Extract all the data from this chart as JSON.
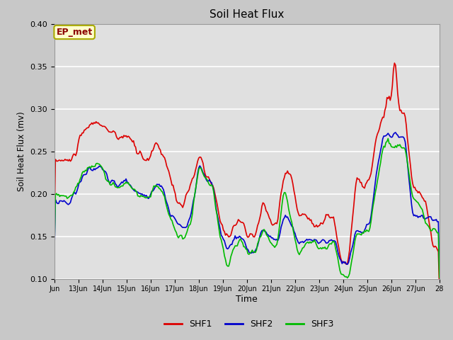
{
  "title": "Soil Heat Flux",
  "xlabel": "Time",
  "ylabel": "Soil Heat Flux (mv)",
  "ylim": [
    0.1,
    0.4
  ],
  "annotation_text": "EP_met",
  "annotation_color": "#8B0000",
  "annotation_bg": "#FFFFCC",
  "annotation_border": "#AAAA00",
  "fig_bg": "#C8C8C8",
  "plot_bg": "#E0E0E0",
  "grid_color": "white",
  "tick_labels": [
    "Jun",
    "13Jun",
    "14Jun",
    "15Jun",
    "16Jun",
    "17Jun",
    "18Jun",
    "19Jun",
    "20Jun",
    "21Jun",
    "22Jun",
    "23Jun",
    "24Jun",
    "25Jun",
    "26Jun",
    "27Jun",
    "28"
  ],
  "line_colors": {
    "SHF1": "#DD0000",
    "SHF2": "#0000CC",
    "SHF3": "#00BB00"
  },
  "line_width": 1.2,
  "shf1_x": [
    0,
    15,
    30,
    42,
    52,
    60,
    68,
    72,
    78,
    88,
    95,
    102,
    108,
    115,
    122,
    128,
    135,
    142,
    148,
    155,
    162,
    168,
    175,
    182,
    188,
    195,
    202,
    208,
    215,
    222,
    228,
    235,
    242,
    248,
    255,
    262,
    268,
    275,
    282,
    288,
    295,
    302,
    308,
    312,
    315,
    318,
    322,
    328,
    335,
    342,
    348,
    355,
    360
  ],
  "shf1_y": [
    0.24,
    0.238,
    0.278,
    0.285,
    0.272,
    0.265,
    0.27,
    0.262,
    0.248,
    0.24,
    0.26,
    0.248,
    0.22,
    0.19,
    0.188,
    0.21,
    0.245,
    0.222,
    0.21,
    0.168,
    0.148,
    0.165,
    0.168,
    0.148,
    0.15,
    0.19,
    0.168,
    0.165,
    0.225,
    0.22,
    0.175,
    0.175,
    0.168,
    0.16,
    0.175,
    0.168,
    0.12,
    0.12,
    0.215,
    0.21,
    0.215,
    0.272,
    0.29,
    0.315,
    0.305,
    0.368,
    0.3,
    0.295,
    0.205,
    0.2,
    0.185,
    0.135,
    0.13
  ],
  "shf2_x": [
    0,
    15,
    30,
    42,
    52,
    60,
    68,
    72,
    78,
    88,
    95,
    102,
    108,
    115,
    122,
    128,
    135,
    142,
    148,
    155,
    162,
    168,
    175,
    182,
    188,
    195,
    202,
    208,
    215,
    222,
    228,
    235,
    242,
    248,
    255,
    262,
    268,
    275,
    282,
    288,
    295,
    302,
    308,
    312,
    315,
    318,
    322,
    328,
    335,
    342,
    348,
    355,
    360
  ],
  "shf2_y": [
    0.192,
    0.19,
    0.228,
    0.232,
    0.215,
    0.21,
    0.215,
    0.21,
    0.2,
    0.195,
    0.215,
    0.205,
    0.178,
    0.165,
    0.158,
    0.175,
    0.232,
    0.218,
    0.21,
    0.155,
    0.132,
    0.148,
    0.148,
    0.13,
    0.132,
    0.162,
    0.148,
    0.142,
    0.175,
    0.165,
    0.142,
    0.145,
    0.148,
    0.14,
    0.145,
    0.148,
    0.118,
    0.118,
    0.158,
    0.155,
    0.165,
    0.228,
    0.268,
    0.272,
    0.26,
    0.272,
    0.265,
    0.265,
    0.175,
    0.172,
    0.172,
    0.17,
    0.168
  ],
  "shf3_x": [
    0,
    15,
    30,
    42,
    52,
    60,
    68,
    72,
    78,
    88,
    95,
    102,
    108,
    115,
    122,
    128,
    135,
    142,
    148,
    155,
    162,
    168,
    175,
    182,
    188,
    195,
    202,
    208,
    215,
    222,
    228,
    235,
    242,
    248,
    255,
    262,
    268,
    275,
    282,
    288,
    295,
    302,
    308,
    312,
    315,
    318,
    322,
    328,
    335,
    342,
    348,
    355,
    360
  ],
  "shf3_y": [
    0.2,
    0.195,
    0.232,
    0.235,
    0.21,
    0.21,
    0.215,
    0.208,
    0.2,
    0.195,
    0.21,
    0.2,
    0.172,
    0.15,
    0.148,
    0.168,
    0.232,
    0.218,
    0.208,
    0.148,
    0.112,
    0.138,
    0.145,
    0.128,
    0.132,
    0.16,
    0.142,
    0.138,
    0.208,
    0.165,
    0.13,
    0.142,
    0.145,
    0.135,
    0.138,
    0.142,
    0.102,
    0.102,
    0.152,
    0.152,
    0.158,
    0.218,
    0.258,
    0.262,
    0.252,
    0.258,
    0.255,
    0.252,
    0.195,
    0.19,
    0.165,
    0.158,
    0.155
  ]
}
